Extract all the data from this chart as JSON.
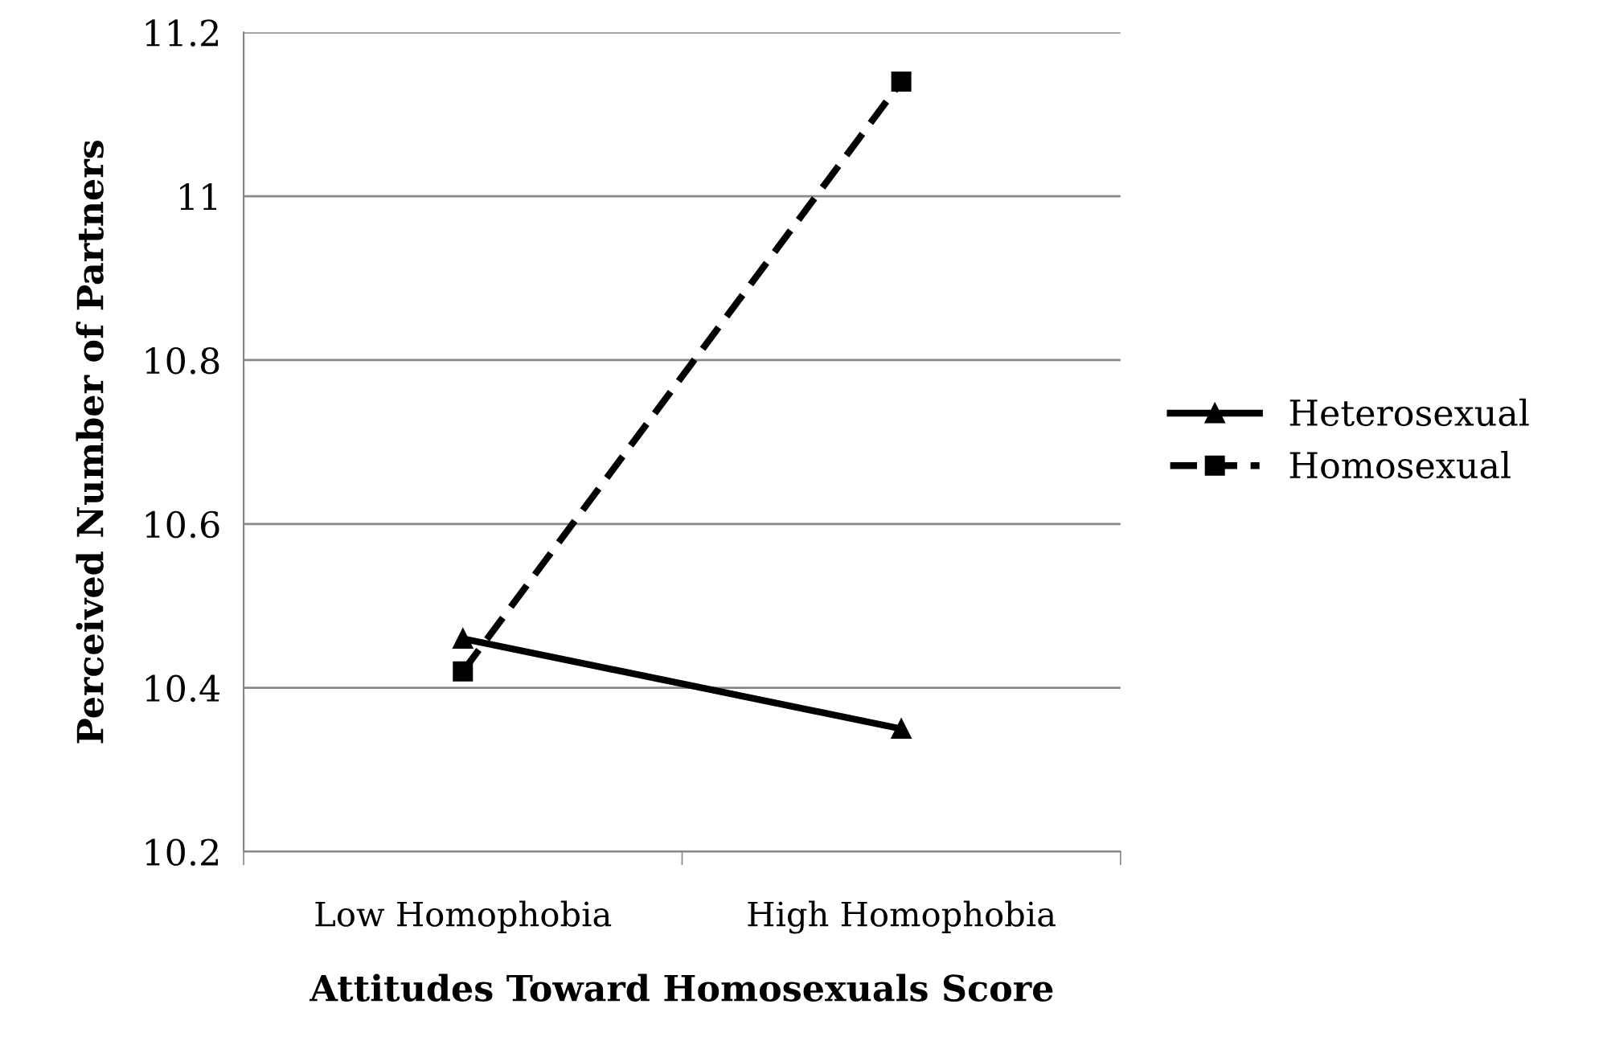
{
  "chart_data": {
    "type": "line",
    "xlabel": "Attitudes Toward Homosexuals Score",
    "ylabel": "Perceived Number of Partners",
    "categories": [
      "Low Homophobia",
      "High Homophobia"
    ],
    "series": [
      {
        "name": "Heterosexual",
        "color": "#000000",
        "values": [
          10.46,
          10.35
        ],
        "marker": "triangle",
        "line_style": "solid"
      },
      {
        "name": "Homosexual",
        "color": "#000000",
        "values": [
          10.42,
          11.14
        ],
        "marker": "square",
        "line_style": "dashed"
      }
    ],
    "ylim": [
      10.2,
      11.2
    ],
    "yticks": [
      10.2,
      10.4,
      10.6,
      10.8,
      11,
      11.2
    ],
    "grid": "y",
    "legend": "right"
  }
}
